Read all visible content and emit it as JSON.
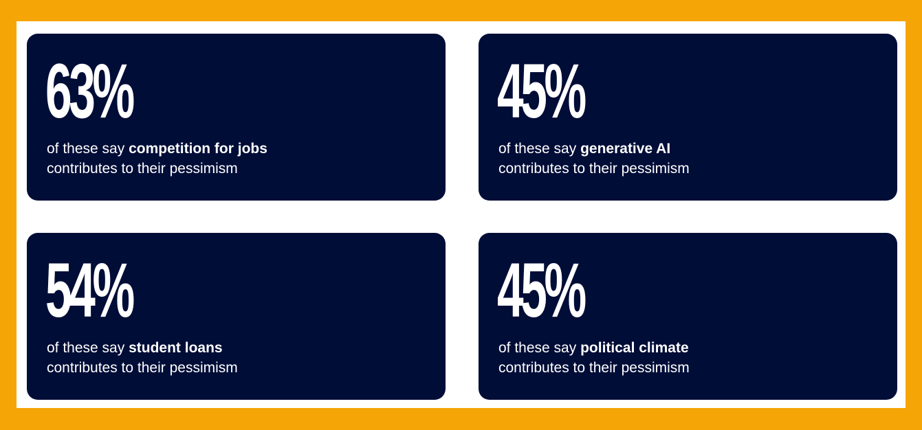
{
  "colors": {
    "frame": "#F5A505",
    "panel": "#FFFFFF",
    "card": "#000D37",
    "text": "#FFFFFF"
  },
  "cards": [
    {
      "value": "63%",
      "prefix": "of these say ",
      "factor": "competition for jobs",
      "suffix": "contributes to their pessimism"
    },
    {
      "value": "45%",
      "prefix": "of these say ",
      "factor": "generative AI",
      "suffix": "contributes to their pessimism"
    },
    {
      "value": "54%",
      "prefix": "of these say ",
      "factor": "student loans",
      "suffix": "contributes to their pessimism"
    },
    {
      "value": "45%",
      "prefix": "of these say ",
      "factor": "political climate",
      "suffix": "contributes to their pessimism"
    }
  ]
}
